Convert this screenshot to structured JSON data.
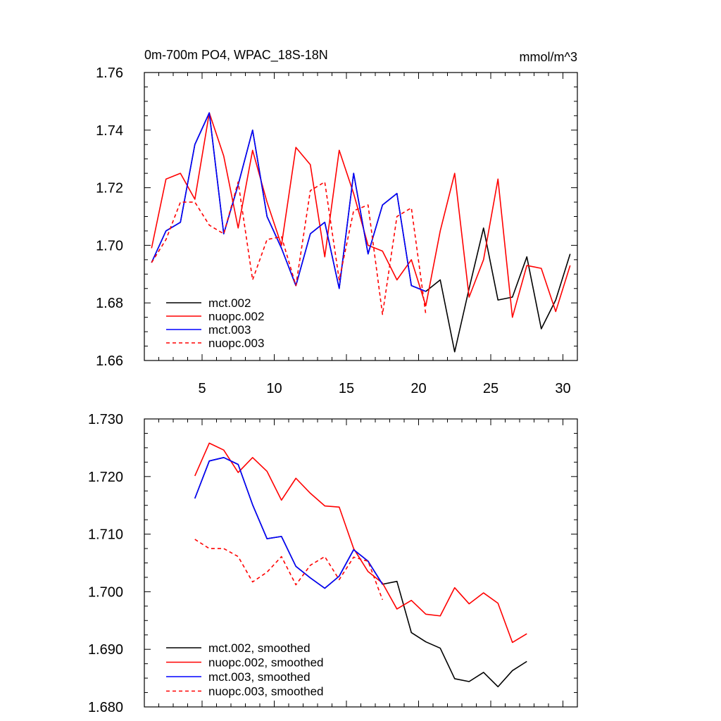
{
  "chart_data": [
    {
      "type": "line",
      "title": "0m-700m PO4, WPAC_18S-18N",
      "units": "mmol/m^3",
      "xlim": [
        1,
        31
      ],
      "ylim": [
        1.66,
        1.76
      ],
      "xticks": [
        5,
        10,
        15,
        20,
        25,
        30
      ],
      "xtick_labels": [
        "5",
        "10",
        "15",
        "20",
        "25",
        "30"
      ],
      "yticks": [
        1.66,
        1.68,
        1.7,
        1.72,
        1.74,
        1.76
      ],
      "ytick_labels": [
        "1.66",
        "1.68",
        "1.70",
        "1.72",
        "1.74",
        "1.76"
      ],
      "legend_position": "bottom-left",
      "series": [
        {
          "name": "mct.002",
          "color": "#000000",
          "dash": "solid",
          "x": [
            1.5,
            2.5,
            3.5,
            4.5,
            5.5,
            6.5,
            7.5,
            8.5,
            9.5,
            10.5,
            11.5,
            12.5,
            13.5,
            14.5,
            15.5,
            16.5,
            17.5,
            18.5,
            19.5,
            20.5,
            21.5,
            22.5,
            23.5,
            24.5,
            25.5,
            26.5,
            27.5,
            28.5,
            29.5,
            30.5
          ],
          "values": [
            1.694,
            1.705,
            1.708,
            1.735,
            1.746,
            1.704,
            1.721,
            1.74,
            1.71,
            1.699,
            1.686,
            1.704,
            1.708,
            1.685,
            1.725,
            1.697,
            1.714,
            1.718,
            1.686,
            1.684,
            1.688,
            1.663,
            1.685,
            1.706,
            1.681,
            1.682,
            1.696,
            1.671,
            1.681,
            1.697
          ]
        },
        {
          "name": "nuopc.002",
          "color": "#ff0000",
          "dash": "solid",
          "x": [
            1.5,
            2.5,
            3.5,
            4.5,
            5.5,
            6.5,
            7.5,
            8.5,
            9.5,
            10.5,
            11.5,
            12.5,
            13.5,
            14.5,
            15.5,
            16.5,
            17.5,
            18.5,
            19.5,
            20.5,
            21.5,
            22.5,
            23.5,
            24.5,
            25.5,
            26.5,
            27.5,
            28.5,
            29.5,
            30.5
          ],
          "values": [
            1.699,
            1.723,
            1.725,
            1.716,
            1.746,
            1.731,
            1.706,
            1.733,
            1.715,
            1.7,
            1.734,
            1.728,
            1.696,
            1.733,
            1.718,
            1.7,
            1.698,
            1.688,
            1.695,
            1.679,
            1.705,
            1.725,
            1.682,
            1.695,
            1.723,
            1.675,
            1.693,
            1.692,
            1.677,
            1.693
          ]
        },
        {
          "name": "mct.003",
          "color": "#0000ff",
          "dash": "solid",
          "x": [
            1.5,
            2.5,
            3.5,
            4.5,
            5.5,
            6.5,
            7.5,
            8.5,
            9.5,
            10.5,
            11.5,
            12.5,
            13.5,
            14.5,
            15.5,
            16.5,
            17.5,
            18.5,
            19.5,
            20.5
          ],
          "values": [
            1.694,
            1.705,
            1.708,
            1.735,
            1.746,
            1.704,
            1.721,
            1.74,
            1.71,
            1.699,
            1.686,
            1.704,
            1.708,
            1.685,
            1.725,
            1.697,
            1.714,
            1.718,
            1.686,
            1.684
          ]
        },
        {
          "name": "nuopc.003",
          "color": "#ff0000",
          "dash": "dashed",
          "x": [
            1.5,
            2.5,
            3.5,
            4.5,
            5.5,
            6.5,
            7.5,
            8.5,
            9.5,
            10.5,
            11.5,
            12.5,
            13.5,
            14.5,
            15.5,
            16.5,
            17.5,
            18.5,
            19.5,
            20.5
          ],
          "values": [
            1.694,
            1.702,
            1.715,
            1.715,
            1.707,
            1.704,
            1.722,
            1.688,
            1.702,
            1.703,
            1.686,
            1.719,
            1.722,
            1.688,
            1.712,
            1.714,
            1.676,
            1.71,
            1.713,
            1.676
          ]
        }
      ]
    },
    {
      "type": "line",
      "xlim": [
        1,
        31
      ],
      "ylim": [
        1.68,
        1.73
      ],
      "xticks": [
        5,
        10,
        15,
        20,
        25,
        30
      ],
      "yticks": [
        1.68,
        1.69,
        1.7,
        1.71,
        1.72,
        1.73
      ],
      "ytick_labels": [
        "1.680",
        "1.690",
        "1.700",
        "1.710",
        "1.720",
        "1.730"
      ],
      "legend_position": "bottom-left",
      "series": [
        {
          "name": "mct.002, smoothed",
          "color": "#000000",
          "dash": "solid",
          "x": [
            4.5,
            5.5,
            6.5,
            7.5,
            8.5,
            9.5,
            10.5,
            11.5,
            12.5,
            13.5,
            14.5,
            15.5,
            16.5,
            17.5,
            18.5,
            19.5,
            20.5,
            21.5,
            22.5,
            23.5,
            24.5,
            25.5,
            26.5,
            27.5
          ],
          "values": [
            1.7162,
            1.7227,
            1.7233,
            1.7221,
            1.7151,
            1.7092,
            1.7096,
            1.7044,
            1.7024,
            1.7006,
            1.7027,
            1.7073,
            1.7053,
            1.7013,
            1.7018,
            1.6929,
            1.6913,
            1.6902,
            1.6849,
            1.6844,
            1.686,
            1.6835,
            1.6863,
            1.6879
          ]
        },
        {
          "name": "nuopc.002, smoothed",
          "color": "#ff0000",
          "dash": "solid",
          "x": [
            4.5,
            5.5,
            6.5,
            7.5,
            8.5,
            9.5,
            10.5,
            11.5,
            12.5,
            13.5,
            14.5,
            15.5,
            16.5,
            17.5,
            18.5,
            19.5,
            20.5,
            21.5,
            22.5,
            23.5,
            24.5,
            25.5,
            26.5,
            27.5
          ],
          "values": [
            1.7201,
            1.7258,
            1.7246,
            1.7207,
            1.7233,
            1.7209,
            1.7159,
            1.7197,
            1.7171,
            1.7149,
            1.7147,
            1.7075,
            1.7035,
            1.7015,
            1.697,
            1.6985,
            1.6961,
            1.6958,
            1.7007,
            1.6979,
            1.6998,
            1.698,
            1.6912,
            1.6927
          ]
        },
        {
          "name": "mct.003, smoothed",
          "color": "#0000ff",
          "dash": "solid",
          "x": [
            4.5,
            5.5,
            6.5,
            7.5,
            8.5,
            9.5,
            10.5,
            11.5,
            12.5,
            13.5,
            14.5,
            15.5,
            16.5,
            17.5
          ],
          "values": [
            1.7162,
            1.7227,
            1.7233,
            1.7221,
            1.7151,
            1.7092,
            1.7096,
            1.7044,
            1.7024,
            1.7006,
            1.7027,
            1.7073,
            1.7053,
            1.7013
          ]
        },
        {
          "name": "nuopc.003, smoothed",
          "color": "#ff0000",
          "dash": "dashed",
          "x": [
            4.5,
            5.5,
            6.5,
            7.5,
            8.5,
            9.5,
            10.5,
            11.5,
            12.5,
            13.5,
            14.5,
            15.5,
            16.5,
            17.5
          ],
          "values": [
            1.7091,
            1.7075,
            1.7075,
            1.7061,
            1.7017,
            1.7034,
            1.7061,
            1.7012,
            1.7046,
            1.7061,
            1.7021,
            1.706,
            1.7053,
            1.6986
          ]
        }
      ]
    }
  ]
}
